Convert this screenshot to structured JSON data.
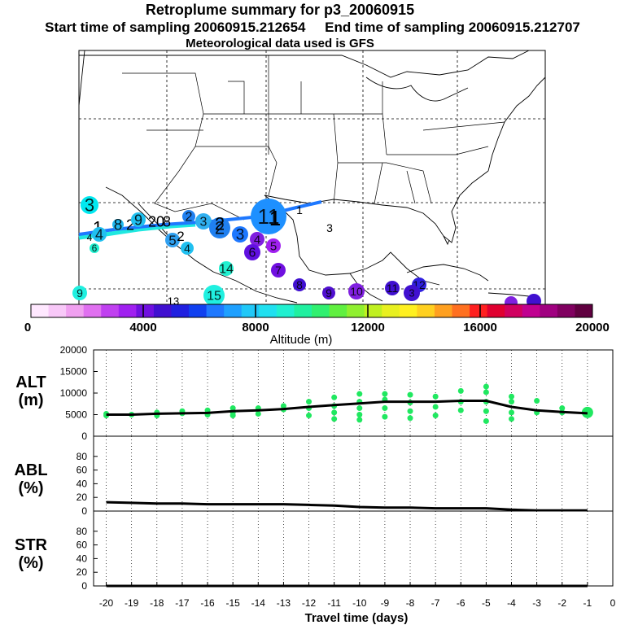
{
  "header": {
    "title": "Retroplume summary for p3_20060915",
    "start_label": "Start time of sampling",
    "start_value": "20060915.212654",
    "end_label": "End time of sampling",
    "end_value": "20060915.212707",
    "met_label": "Meteorological data used is GFS"
  },
  "colorbar": {
    "label": "Altitude (m)",
    "ticks": [
      "0",
      "4000",
      "8000",
      "12000",
      "16000",
      "20000"
    ],
    "colors": [
      "#ffe8ff",
      "#f8c8f8",
      "#f0a0f0",
      "#e070f0",
      "#c040f0",
      "#a020f0",
      "#7010e0",
      "#4010d0",
      "#2020e0",
      "#1040f0",
      "#1e78ff",
      "#1ea0ff",
      "#20c8f8",
      "#20e0f0",
      "#20f0d0",
      "#20f0a0",
      "#30f070",
      "#60f040",
      "#90f030",
      "#c0f020",
      "#e8f020",
      "#fff020",
      "#ffd020",
      "#ffa020",
      "#ff7020",
      "#ff2020",
      "#e00030",
      "#d00060",
      "#c00090",
      "#a00080",
      "#800060",
      "#600040"
    ]
  },
  "map": {
    "labels": [
      {
        "t": "3",
        "c": "#00e8f0"
      },
      {
        "t": "1",
        "c": "#000000"
      },
      {
        "t": "8",
        "c": "#20b8f0"
      },
      {
        "t": "4",
        "c": "#20c0f0"
      },
      {
        "t": "2",
        "c": "#40a8f0"
      },
      {
        "t": "9",
        "c": "#20c0f0"
      },
      {
        "t": "20",
        "c": "#20c8f0"
      },
      {
        "t": "8",
        "c": "#30a0f0"
      },
      {
        "t": "2",
        "c": "#2080f0"
      },
      {
        "t": "5",
        "c": "#30a0f0"
      },
      {
        "t": "2",
        "c": "#30a0f0"
      },
      {
        "t": "3",
        "c": "#30b0f0"
      },
      {
        "t": "4",
        "c": "#20c0f0"
      },
      {
        "t": "2",
        "c": "#2080f0"
      },
      {
        "t": "3",
        "c": "#1e78ff"
      },
      {
        "t": "2",
        "c": "#1e78ff"
      },
      {
        "t": "11",
        "c": "#1e90ff"
      },
      {
        "t": "1",
        "c": "#1e90ff"
      },
      {
        "t": "4",
        "c": "#8020e0"
      },
      {
        "t": "5",
        "c": "#a020f0"
      },
      {
        "t": "6",
        "c": "#6010e0"
      },
      {
        "t": "7",
        "c": "#7010e0"
      },
      {
        "t": "1",
        "c": "#000000"
      },
      {
        "t": "3",
        "c": "#a040c0"
      },
      {
        "t": "14",
        "c": "#20f0d0"
      },
      {
        "t": "8",
        "c": "#4010d0"
      },
      {
        "t": "9",
        "c": "#5010d0"
      },
      {
        "t": "10",
        "c": "#8020e0"
      },
      {
        "t": "11",
        "c": "#4010d0"
      },
      {
        "t": "12",
        "c": "#3020e0"
      },
      {
        "t": "3",
        "c": "#4010d0"
      },
      {
        "t": "9",
        "c": "#20f0e0"
      },
      {
        "t": "15",
        "c": "#20f0e0"
      },
      {
        "t": "13",
        "c": "#3020e0"
      },
      {
        "t": "6",
        "c": "#20f0d0"
      },
      {
        "t": "4",
        "c": "#20f0d0"
      }
    ]
  },
  "chart_data": [
    {
      "type": "scatter",
      "name": "ALT",
      "ylabel": "ALT\n(m)",
      "ylim": [
        0,
        20000
      ],
      "yticks": [
        "0",
        "5000",
        "10000",
        "15000",
        "20000"
      ],
      "x": [
        -20,
        -19,
        -18,
        -17,
        -16,
        -15,
        -14,
        -13,
        -12,
        -11,
        -10,
        -9,
        -8,
        -7,
        -6,
        -5,
        -4,
        -3,
        -2,
        -1
      ],
      "mean_line": [
        5000,
        5000,
        5200,
        5300,
        5400,
        5800,
        6000,
        6300,
        6800,
        7200,
        7600,
        8000,
        8000,
        8000,
        8200,
        8200,
        6800,
        6000,
        5600,
        5300
      ],
      "points": [
        [
          -20,
          5200
        ],
        [
          -20,
          4800
        ],
        [
          -19,
          5000
        ],
        [
          -18,
          5500
        ],
        [
          -18,
          4800
        ],
        [
          -17,
          5300
        ],
        [
          -17,
          5800
        ],
        [
          -16,
          5000
        ],
        [
          -16,
          6000
        ],
        [
          -15,
          6500
        ],
        [
          -15,
          5500
        ],
        [
          -15,
          4800
        ],
        [
          -14,
          6500
        ],
        [
          -14,
          5200
        ],
        [
          -13,
          7000
        ],
        [
          -13,
          6200
        ],
        [
          -12,
          8000
        ],
        [
          -12,
          6500
        ],
        [
          -12,
          4800
        ],
        [
          -11,
          9000
        ],
        [
          -11,
          7000
        ],
        [
          -11,
          5500
        ],
        [
          -11,
          4000
        ],
        [
          -10,
          9800
        ],
        [
          -10,
          8000
        ],
        [
          -10,
          6500
        ],
        [
          -10,
          5000
        ],
        [
          -10,
          3800
        ],
        [
          -9,
          9800
        ],
        [
          -9,
          8500
        ],
        [
          -9,
          6500
        ],
        [
          -9,
          4500
        ],
        [
          -8,
          9600
        ],
        [
          -8,
          7800
        ],
        [
          -8,
          5800
        ],
        [
          -8,
          4200
        ],
        [
          -7,
          9200
        ],
        [
          -7,
          6800
        ],
        [
          -7,
          4800
        ],
        [
          -6,
          10500
        ],
        [
          -6,
          8000
        ],
        [
          -6,
          6000
        ],
        [
          -5,
          11500
        ],
        [
          -5,
          10200
        ],
        [
          -5,
          8000
        ],
        [
          -5,
          5800
        ],
        [
          -5,
          3500
        ],
        [
          -4,
          9200
        ],
        [
          -4,
          8000
        ],
        [
          -4,
          5500
        ],
        [
          -4,
          4000
        ],
        [
          -3,
          8200
        ],
        [
          -3,
          5500
        ],
        [
          -2,
          6500
        ],
        [
          -2,
          5500
        ],
        [
          -1,
          5500
        ]
      ]
    },
    {
      "type": "line",
      "name": "ABL",
      "ylabel": "ABL\n(%)",
      "ylim": [
        0,
        100
      ],
      "yticks": [
        "0",
        "20",
        "40",
        "60",
        "80"
      ],
      "x": [
        -20,
        -19,
        -18,
        -17,
        -16,
        -15,
        -14,
        -13,
        -12,
        -11,
        -10,
        -9,
        -8,
        -7,
        -6,
        -5,
        -4,
        -3,
        -2,
        -1
      ],
      "values": [
        13,
        12,
        11,
        11,
        10,
        10,
        10,
        10,
        9,
        8,
        6,
        5,
        5,
        4,
        4,
        4,
        2,
        1,
        1,
        1
      ]
    },
    {
      "type": "line",
      "name": "STR",
      "ylabel": "STR\n(%)",
      "ylim": [
        0,
        100
      ],
      "yticks": [
        "0",
        "20",
        "40",
        "60",
        "80"
      ],
      "x": [
        -20,
        -19,
        -18,
        -17,
        -16,
        -15,
        -14,
        -13,
        -12,
        -11,
        -10,
        -9,
        -8,
        -7,
        -6,
        -5,
        -4,
        -3,
        -2,
        -1
      ],
      "values": [
        0,
        0,
        0,
        0,
        0,
        0,
        0,
        0,
        0,
        0,
        0,
        0,
        0,
        0,
        0,
        0,
        0,
        0,
        0,
        0
      ]
    }
  ],
  "xaxis": {
    "label": "Travel time (days)",
    "ticks": [
      "-20",
      "-19",
      "-18",
      "-17",
      "-16",
      "-15",
      "-14",
      "-13",
      "-12",
      "-11",
      "-10",
      "-9",
      "-8",
      "-7",
      "-6",
      "-5",
      "-4",
      "-3",
      "-2",
      "-1",
      "0"
    ]
  }
}
